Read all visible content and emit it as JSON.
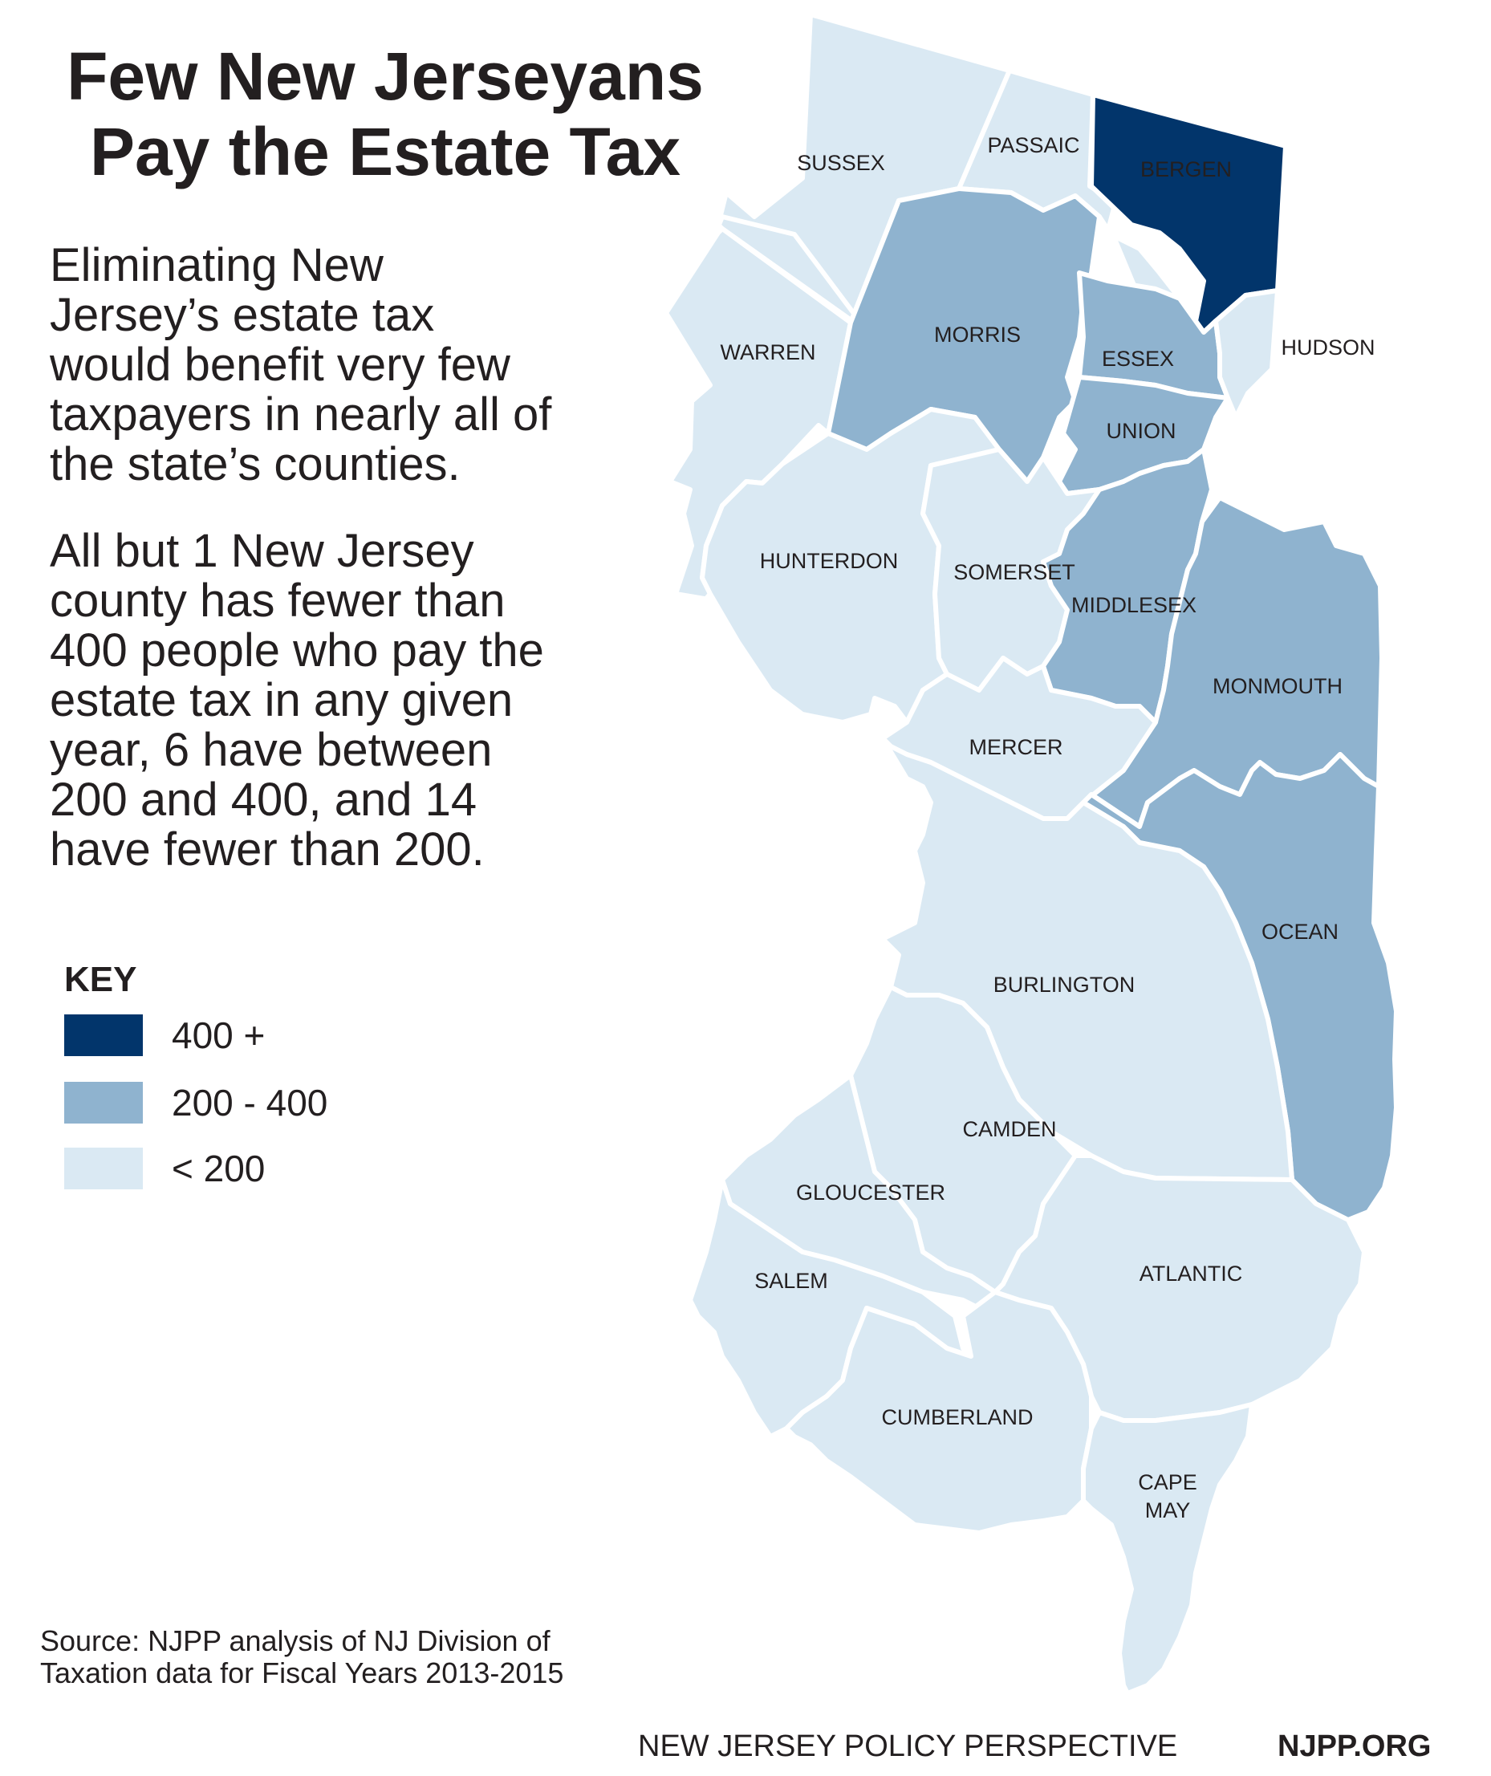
{
  "title": {
    "line1": "Few New Jerseyans",
    "line2": "Pay the Estate Tax"
  },
  "paragraphs": {
    "p1": [
      "Eliminating New",
      "Jersey’s estate tax",
      "would benefit very few",
      "taxpayers in nearly all of",
      "the state’s counties."
    ],
    "p2": [
      "All but 1 New Jersey",
      "county has fewer than",
      "400 people who pay the",
      "estate tax in any given",
      "year, 6 have between",
      "200 and 400, and 14",
      "have fewer than 200."
    ]
  },
  "legend": {
    "title": "KEY",
    "items": [
      {
        "label": "400 +",
        "color": "#02356b"
      },
      {
        "label": "200 - 400",
        "color": "#8fb3cf"
      },
      {
        "label": "< 200",
        "color": "#dae9f3"
      }
    ]
  },
  "counties": [
    {
      "name": "SUSSEX",
      "category": "< 200"
    },
    {
      "name": "PASSAIC",
      "category": "< 200"
    },
    {
      "name": "BERGEN",
      "category": "400 +"
    },
    {
      "name": "WARREN",
      "category": "< 200"
    },
    {
      "name": "MORRIS",
      "category": "200 - 400"
    },
    {
      "name": "ESSEX",
      "category": "200 - 400"
    },
    {
      "name": "HUDSON",
      "category": "< 200"
    },
    {
      "name": "UNION",
      "category": "200 - 400"
    },
    {
      "name": "HUNTERDON",
      "category": "< 200"
    },
    {
      "name": "SOMERSET",
      "category": "< 200"
    },
    {
      "name": "MIDDLESEX",
      "category": "200 - 400"
    },
    {
      "name": "MONMOUTH",
      "category": "200 - 400"
    },
    {
      "name": "MERCER",
      "category": "< 200"
    },
    {
      "name": "OCEAN",
      "category": "200 - 400"
    },
    {
      "name": "BURLINGTON",
      "category": "< 200"
    },
    {
      "name": "CAMDEN",
      "category": "< 200"
    },
    {
      "name": "GLOUCESTER",
      "category": "< 200"
    },
    {
      "name": "ATLANTIC",
      "category": "< 200"
    },
    {
      "name": "SALEM",
      "category": "< 200"
    },
    {
      "name": "CUMBERLAND",
      "category": "< 200"
    },
    {
      "name": "CAPE",
      "category": "< 200"
    },
    {
      "name": "MAY",
      "category": "< 200"
    }
  ],
  "source": {
    "line1": "Source: NJPP analysis of NJ Division of",
    "line2": "Taxation data for Fiscal Years 2013-2015"
  },
  "footer": {
    "org": "NEW JERSEY POLICY PERSPECTIVE",
    "url": "NJPP.ORG"
  }
}
